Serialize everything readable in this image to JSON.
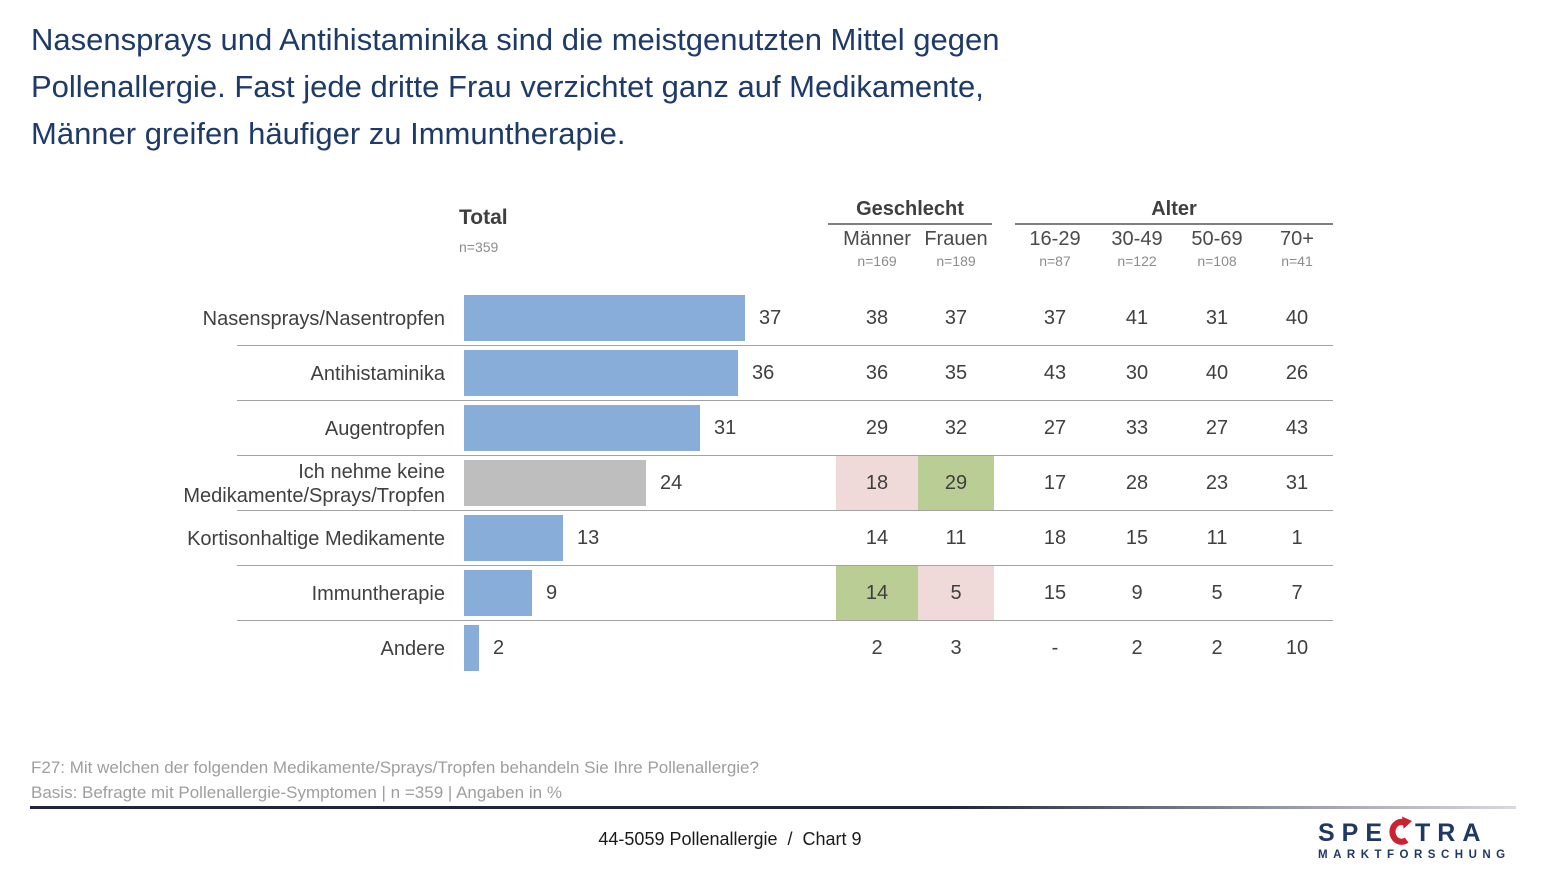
{
  "title": {
    "lines": [
      "Nasensprays und Antihistaminika sind die meistgenutzten Mittel gegen",
      "Pollenallergie. Fast jede dritte Frau verzichtet ganz auf Medikamente,",
      "Männer greifen häufiger zu Immuntherapie."
    ]
  },
  "chart_data": {
    "type": "bar",
    "orientation": "horizontal",
    "unit": "%",
    "total_column": {
      "label": "Total",
      "n": "n=359"
    },
    "groups": [
      {
        "label": "Geschlecht",
        "columns": [
          {
            "label": "Männer",
            "n": "n=169"
          },
          {
            "label": "Frauen",
            "n": "n=189"
          }
        ]
      },
      {
        "label": "Alter",
        "columns": [
          {
            "label": "16-29",
            "n": "n=87"
          },
          {
            "label": "30-49",
            "n": "n=122"
          },
          {
            "label": "50-69",
            "n": "n=108"
          },
          {
            "label": "70+",
            "n": "n=41"
          }
        ]
      }
    ],
    "rows": [
      {
        "label": "Nasensprays/Nasentropfen",
        "total": 37,
        "bar": "blue",
        "values": [
          "38",
          "37",
          "37",
          "41",
          "31",
          "40"
        ],
        "highlights": [
          "",
          "",
          "",
          "",
          "",
          ""
        ]
      },
      {
        "label": "Antihistaminika",
        "total": 36,
        "bar": "blue",
        "values": [
          "36",
          "35",
          "43",
          "30",
          "40",
          "26"
        ],
        "highlights": [
          "",
          "",
          "",
          "",
          "",
          ""
        ]
      },
      {
        "label": "Augentropfen",
        "total": 31,
        "bar": "blue",
        "values": [
          "29",
          "32",
          "27",
          "33",
          "27",
          "43"
        ],
        "highlights": [
          "",
          "",
          "",
          "",
          "",
          ""
        ]
      },
      {
        "label": "Ich nehme keine\nMedikamente/Sprays/Tropfen",
        "total": 24,
        "bar": "gray",
        "values": [
          "18",
          "29",
          "17",
          "28",
          "23",
          "31"
        ],
        "highlights": [
          "pink",
          "green",
          "",
          "",
          "",
          ""
        ]
      },
      {
        "label": "Kortisonhaltige Medikamente",
        "total": 13,
        "bar": "blue",
        "values": [
          "14",
          "11",
          "18",
          "15",
          "11",
          "1"
        ],
        "highlights": [
          "",
          "",
          "",
          "",
          "",
          ""
        ]
      },
      {
        "label": "Immuntherapie",
        "total": 9,
        "bar": "blue",
        "values": [
          "14",
          "5",
          "15",
          "9",
          "5",
          "7"
        ],
        "highlights": [
          "green",
          "pink",
          "",
          "",
          "",
          ""
        ]
      },
      {
        "label": "Andere",
        "total": 2,
        "bar": "blue",
        "values": [
          "2",
          "3",
          "-",
          "2",
          "2",
          "10"
        ],
        "highlights": [
          "",
          "",
          "",
          "",
          "",
          ""
        ]
      }
    ],
    "colors": {
      "bar_blue": "#87ADD8",
      "bar_gray": "#BEBEBE",
      "highlight_green": "#BACD94",
      "highlight_pink": "#F0D9D9"
    }
  },
  "footnote": {
    "line1": "F27: Mit welchen der folgenden Medikamente/Sprays/Tropfen behandeln Sie Ihre Pollenallergie?",
    "line2": "Basis: Befragte mit Pollenallergie-Symptomen | n =359 | Angaben in %"
  },
  "footer": {
    "chart_id": "44-5059 Pollenallergie  /  Chart 9"
  },
  "logo": {
    "brand_pre": "SPE",
    "brand_post": "TRA",
    "subtitle": "MARKTFORSCHUNG",
    "accent_red": "#CB2232",
    "navy": "#1F3864"
  }
}
